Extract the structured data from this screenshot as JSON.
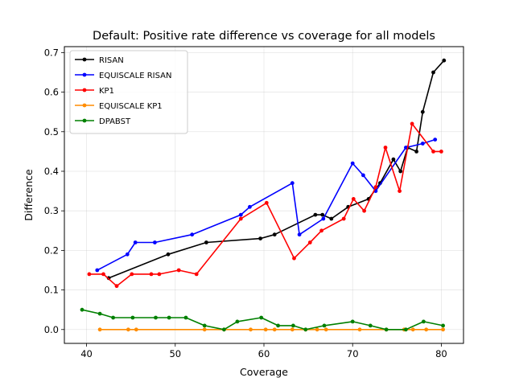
{
  "chart_data": {
    "type": "line",
    "title": "Default: Positive rate difference vs coverage for all models",
    "xlabel": "Coverage",
    "ylabel": "Difference",
    "xlim": [
      37.5,
      82.5
    ],
    "ylim": [
      -0.035,
      0.715
    ],
    "xticks": [
      40,
      50,
      60,
      70,
      80
    ],
    "yticks": [
      0.0,
      0.1,
      0.2,
      0.3,
      0.4,
      0.5,
      0.6,
      0.7
    ],
    "grid": true,
    "legend_position": "top-left",
    "series": [
      {
        "name": "RISAN",
        "color": "#000000",
        "points": [
          [
            42.5,
            0.13
          ],
          [
            49.2,
            0.19
          ],
          [
            53.5,
            0.22
          ],
          [
            59.6,
            0.23
          ],
          [
            61.2,
            0.24
          ],
          [
            65.8,
            0.29
          ],
          [
            66.6,
            0.29
          ],
          [
            67.6,
            0.28
          ],
          [
            69.5,
            0.31
          ],
          [
            71.8,
            0.33
          ],
          [
            73.1,
            0.37
          ],
          [
            74.6,
            0.43
          ],
          [
            75.4,
            0.4
          ],
          [
            76.2,
            0.46
          ],
          [
            77.2,
            0.45
          ],
          [
            77.9,
            0.55
          ],
          [
            79.1,
            0.65
          ],
          [
            80.3,
            0.68
          ]
        ]
      },
      {
        "name": "EQUISCALE RISAN",
        "color": "#0000ff",
        "points": [
          [
            41.2,
            0.15
          ],
          [
            44.6,
            0.19
          ],
          [
            45.5,
            0.22
          ],
          [
            47.7,
            0.22
          ],
          [
            51.9,
            0.24
          ],
          [
            57.4,
            0.29
          ],
          [
            58.4,
            0.31
          ],
          [
            63.2,
            0.37
          ],
          [
            64.0,
            0.24
          ],
          [
            66.7,
            0.28
          ],
          [
            70.0,
            0.42
          ],
          [
            71.2,
            0.39
          ],
          [
            72.6,
            0.35
          ],
          [
            76.0,
            0.46
          ],
          [
            77.9,
            0.47
          ],
          [
            79.3,
            0.48
          ]
        ]
      },
      {
        "name": "KP1",
        "color": "#ff0000",
        "points": [
          [
            40.3,
            0.14
          ],
          [
            41.9,
            0.14
          ],
          [
            43.4,
            0.11
          ],
          [
            45.1,
            0.14
          ],
          [
            47.3,
            0.14
          ],
          [
            48.2,
            0.14
          ],
          [
            50.4,
            0.15
          ],
          [
            52.4,
            0.14
          ],
          [
            57.4,
            0.28
          ],
          [
            60.3,
            0.32
          ],
          [
            63.4,
            0.18
          ],
          [
            65.2,
            0.22
          ],
          [
            66.5,
            0.25
          ],
          [
            69.0,
            0.28
          ],
          [
            70.1,
            0.33
          ],
          [
            71.3,
            0.3
          ],
          [
            72.6,
            0.36
          ],
          [
            73.7,
            0.46
          ],
          [
            75.3,
            0.35
          ],
          [
            76.7,
            0.52
          ],
          [
            79.1,
            0.45
          ],
          [
            80.0,
            0.45
          ]
        ]
      },
      {
        "name": "EQUISCALE KP1",
        "color": "#ff8c00",
        "points": [
          [
            41.5,
            0.0
          ],
          [
            44.7,
            0.0
          ],
          [
            45.6,
            0.0
          ],
          [
            53.3,
            0.0
          ],
          [
            55.5,
            0.0
          ],
          [
            58.5,
            0.0
          ],
          [
            60.2,
            0.0
          ],
          [
            61.2,
            0.0
          ],
          [
            63.2,
            0.0
          ],
          [
            64.7,
            0.0
          ],
          [
            66.0,
            0.0
          ],
          [
            67.0,
            0.0
          ],
          [
            70.8,
            0.0
          ],
          [
            73.8,
            0.0
          ],
          [
            75.8,
            0.0
          ],
          [
            76.8,
            0.0
          ],
          [
            78.3,
            0.0
          ],
          [
            80.2,
            0.0
          ]
        ]
      },
      {
        "name": "DPABST",
        "color": "#008000",
        "points": [
          [
            39.5,
            0.05
          ],
          [
            41.5,
            0.04
          ],
          [
            43.0,
            0.03
          ],
          [
            45.2,
            0.03
          ],
          [
            47.8,
            0.03
          ],
          [
            49.3,
            0.03
          ],
          [
            51.2,
            0.03
          ],
          [
            53.3,
            0.01
          ],
          [
            55.5,
            0.0
          ],
          [
            57.0,
            0.02
          ],
          [
            59.7,
            0.03
          ],
          [
            61.6,
            0.01
          ],
          [
            63.3,
            0.01
          ],
          [
            64.7,
            0.0
          ],
          [
            66.8,
            0.01
          ],
          [
            70.0,
            0.02
          ],
          [
            72.0,
            0.01
          ],
          [
            73.8,
            0.0
          ],
          [
            76.0,
            0.0
          ],
          [
            78.0,
            0.02
          ],
          [
            80.2,
            0.01
          ]
        ]
      }
    ]
  }
}
